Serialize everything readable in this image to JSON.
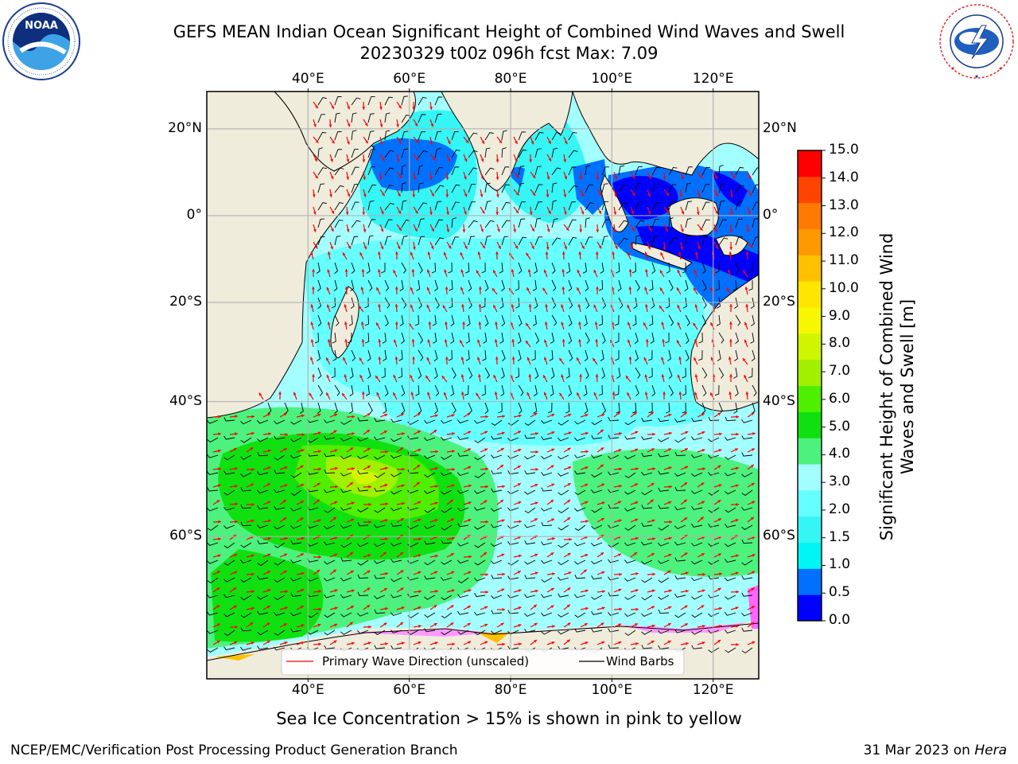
{
  "title": {
    "line1": "GEFS MEAN Indian Ocean Significant Height of Combined Wind Waves and Swell",
    "line2": "20230329 t00z 096h fcst   Max: 7.09"
  },
  "logos": {
    "left": {
      "icon": "noaa-logo",
      "ring_text": "NATIONAL OCEANIC AND ATMOSPHERIC ADMINISTRATION · U.S. DEPARTMENT OF COMMERCE",
      "center_text": "NOAA"
    },
    "right": {
      "icon": "nws-logo",
      "ring_text": "NATIONAL WEATHER SERVICE"
    }
  },
  "map": {
    "lon_ticks": [
      "40°E",
      "60°E",
      "80°E",
      "100°E",
      "120°E"
    ],
    "lat_ticks": [
      "20°N",
      "0°",
      "20°S",
      "40°S",
      "60°S"
    ],
    "lon_range": [
      20,
      129
    ],
    "lat_range": [
      -73,
      28
    ],
    "land_color": "#efecdc",
    "grid": true
  },
  "legend": {
    "items": [
      {
        "label": "Primary Wave Direction (unscaled)",
        "color": "#ff0000"
      },
      {
        "label": "Wind Barbs",
        "color": "#000000"
      }
    ]
  },
  "colorbar": {
    "label": "Significant Height of Combined Wind Waves and Swell [m]",
    "ticks": [
      "0.0",
      "0.5",
      "1.0",
      "1.5",
      "2.0",
      "3.0",
      "4.0",
      "5.0",
      "6.0",
      "7.0",
      "8.0",
      "9.0",
      "10.0",
      "11.0",
      "12.0",
      "13.0",
      "14.0",
      "15.0"
    ],
    "colors": [
      "#0000ff",
      "#0070ff",
      "#00f5f5",
      "#35f5f5",
      "#66ffff",
      "#a3ffff",
      "#4cf27d",
      "#10e010",
      "#4fef00",
      "#a0f000",
      "#d0f500",
      "#f7f700",
      "#ffe600",
      "#ffc000",
      "#ff9900",
      "#ff7a00",
      "#ff4400",
      "#ff0000"
    ]
  },
  "caption": "Sea Ice Concentration > 15% is shown in pink to yellow",
  "footer": {
    "left": "NCEP/EMC/Verification Post Processing Product Generation Branch",
    "right_prefix": "31 Mar 2023 on ",
    "right_machine": "Hera"
  }
}
